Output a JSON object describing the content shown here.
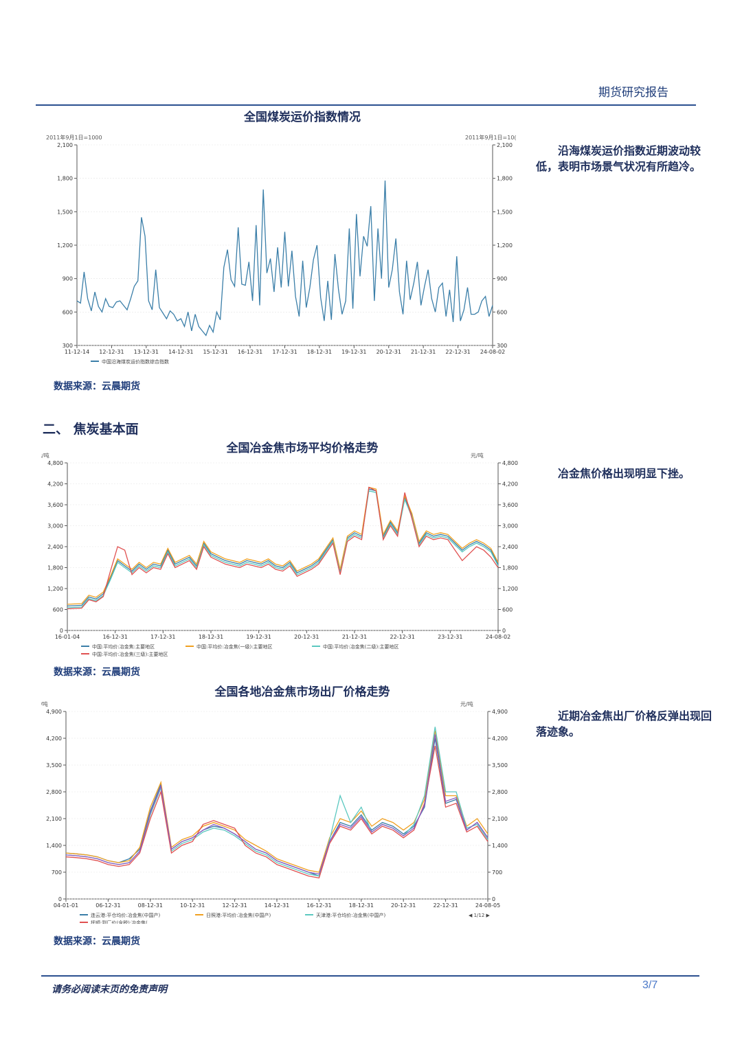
{
  "header": {
    "title": "期货研究报告"
  },
  "footer": {
    "disclaimer": "请务必阅读末页的免责声明",
    "page": "3/7"
  },
  "section2": {
    "title": "二、 焦炭基本面"
  },
  "sections": [
    {
      "title": "全国煤炭运价指数情况",
      "source": "数据来源：云晨期货",
      "note": "沿海煤炭运价指数近期波动较低，表明市场景气状况有所趋冷。"
    },
    {
      "title": "全国冶金焦市场平均价格走势",
      "source": "数据来源：云晨期货",
      "note": "冶金焦价格出现明显下挫。"
    },
    {
      "title": "全国各地冶金焦市场出厂价格走势",
      "source": "数据来源：云晨期货",
      "note": "近期冶金焦出厂价格反弹出现回落迹象。"
    }
  ],
  "chart_data": [
    {
      "type": "line",
      "unit_left": "2011年9月1日=1000",
      "unit_right": "2011年9月1日=10(",
      "ylim": [
        300,
        2100
      ],
      "yticks": [
        "300",
        "600",
        "900",
        "1,200",
        "1,500",
        "1,800",
        "2,100"
      ],
      "x_ticks": [
        "11-12-14",
        "12-12-31",
        "13-12-31",
        "14-12-31",
        "15-12-31",
        "16-12-31",
        "17-12-31",
        "18-12-31",
        "19-12-31",
        "20-12-31",
        "21-12-31",
        "22-12-31",
        "24-08-02"
      ],
      "legend_position": "bottom",
      "series": [
        {
          "name": "中国沿海煤炭运价指数综合指数",
          "color": "#3a7ea8",
          "values": [
            700,
            680,
            960,
            720,
            610,
            780,
            650,
            600,
            720,
            650,
            640,
            690,
            700,
            660,
            620,
            720,
            830,
            880,
            1450,
            1280,
            700,
            620,
            980,
            640,
            590,
            540,
            610,
            580,
            520,
            540,
            470,
            600,
            430,
            580,
            470,
            430,
            390,
            480,
            420,
            600,
            530,
            1000,
            1160,
            890,
            830,
            1360,
            850,
            840,
            1050,
            700,
            1380,
            660,
            1700,
            950,
            1080,
            780,
            1180,
            820,
            1320,
            830,
            1150,
            740,
            560,
            1060,
            640,
            820,
            1070,
            1200,
            730,
            520,
            880,
            530,
            1120,
            800,
            580,
            700,
            1350,
            630,
            1480,
            920,
            1280,
            1190,
            1550,
            700,
            1350,
            900,
            1780,
            820,
            980,
            1260,
            780,
            580,
            1060,
            710,
            860,
            1050,
            660,
            830,
            980,
            720,
            600,
            820,
            860,
            560,
            800,
            510,
            1100,
            520,
            620,
            820,
            580,
            580,
            600,
            700,
            740,
            560,
            660
          ]
        }
      ]
    },
    {
      "type": "line",
      "unit_left": "元/吨",
      "unit_right": "元/吨",
      "ylim": [
        0,
        4800
      ],
      "yticks": [
        "0",
        "600",
        "1,200",
        "1,800",
        "2,400",
        "3,000",
        "3,600",
        "4,200",
        "4,800"
      ],
      "x_ticks": [
        "16-01-04",
        "16-12-31",
        "17-12-31",
        "18-12-31",
        "19-12-31",
        "20-12-31",
        "21-12-31",
        "22-12-31",
        "23-12-31",
        "24-08-02"
      ],
      "legend_position": "bottom",
      "series": [
        {
          "name": "中国:平均价:冶金焦:主要地区",
          "color": "#3a7ea8",
          "values": [
            700,
            710,
            720,
            960,
            900,
            1050,
            1500,
            2000,
            1850,
            1700,
            1900,
            1750,
            1900,
            1850,
            2300,
            1900,
            2000,
            2100,
            1850,
            2500,
            2200,
            2100,
            2000,
            1950,
            1900,
            2000,
            1950,
            1900,
            2000,
            1850,
            1800,
            1950,
            1650,
            1750,
            1850,
            2000,
            2300,
            2600,
            1700,
            2650,
            2800,
            2700,
            4050,
            4000,
            2700,
            3100,
            2800,
            3800,
            3300,
            2500,
            2800,
            2700,
            2750,
            2700,
            2500,
            2300,
            2450,
            2550,
            2450,
            2300,
            1900
          ]
        },
        {
          "name": "中国:平均价:冶金焦(一级):主要地区",
          "color": "#f0a020",
          "values": [
            750,
            760,
            770,
            1010,
            950,
            1100,
            1550,
            2050,
            1900,
            1750,
            1950,
            1800,
            1950,
            1900,
            2350,
            1950,
            2050,
            2150,
            1900,
            2550,
            2250,
            2150,
            2050,
            2000,
            1950,
            2050,
            2000,
            1950,
            2050,
            1900,
            1850,
            2000,
            1700,
            1800,
            1900,
            2050,
            2350,
            2650,
            1750,
            2700,
            2850,
            2750,
            4100,
            4050,
            2750,
            3150,
            2850,
            3850,
            3350,
            2550,
            2850,
            2750,
            2800,
            2750,
            2550,
            2350,
            2500,
            2600,
            2500,
            2350,
            1950
          ]
        },
        {
          "name": "中国:平均价:冶金焦(二级):主要地区",
          "color": "#5bc8c0",
          "values": [
            650,
            660,
            670,
            910,
            850,
            1000,
            1450,
            1950,
            1800,
            1650,
            1850,
            1700,
            1850,
            1800,
            2250,
            1850,
            1950,
            2050,
            1800,
            2450,
            2150,
            2050,
            1950,
            1900,
            1850,
            1950,
            1900,
            1850,
            1950,
            1800,
            1750,
            1900,
            1600,
            1700,
            1800,
            1950,
            2250,
            2550,
            1650,
            2600,
            2750,
            2650,
            4000,
            3950,
            2650,
            3050,
            2750,
            3750,
            3250,
            2450,
            2750,
            2650,
            2700,
            2650,
            2450,
            2250,
            2400,
            2500,
            2400,
            2250,
            1850
          ]
        },
        {
          "name": "中国:平均价:冶金焦(三级):主要地区",
          "color": "#e05050",
          "values": [
            620,
            630,
            640,
            880,
            820,
            970,
            1700,
            2400,
            2300,
            1600,
            1800,
            1650,
            1800,
            1750,
            2200,
            1800,
            1900,
            2000,
            1750,
            2400,
            2100,
            2000,
            1900,
            1850,
            1800,
            1900,
            1850,
            1800,
            1900,
            1750,
            1700,
            1850,
            1550,
            1650,
            1750,
            1900,
            2200,
            2500,
            1600,
            2550,
            2700,
            2600,
            4100,
            4000,
            2600,
            3000,
            2700,
            3950,
            3200,
            2400,
            2700,
            2600,
            2650,
            2600,
            2300,
            2000,
            2200,
            2400,
            2300,
            2100,
            1800
          ]
        }
      ]
    },
    {
      "type": "line",
      "unit_left": "元/吨",
      "unit_right": "元/吨",
      "ylim": [
        0,
        4900
      ],
      "yticks": [
        "0",
        "700",
        "1,400",
        "2,100",
        "2,800",
        "3,500",
        "4,200",
        "4,900"
      ],
      "x_ticks": [
        "04-01-01",
        "06-12-31",
        "08-12-31",
        "10-12-31",
        "12-12-31",
        "14-12-31",
        "16-12-31",
        "18-12-31",
        "20-12-31",
        "22-12-31",
        "24-08-05"
      ],
      "legend_position": "bottom",
      "legend_page": "1/12",
      "series": [
        {
          "name": "连云港:平仓均价:冶金焦(中国产)",
          "color": "#3a7ea8",
          "values": [
            1200,
            1180,
            1150,
            1100,
            1000,
            950,
            1050,
            1300,
            2300,
            3000,
            1300,
            1500,
            1600,
            1800,
            1900,
            1850,
            1700,
            1500,
            1300,
            1200,
            1000,
            900,
            800,
            700,
            600,
            1500,
            2000,
            1900,
            2200,
            1800,
            2000,
            1900,
            1700,
            1900,
            2400,
            4200,
            2500,
            2600,
            1800,
            2000,
            1600
          ]
        },
        {
          "name": "日照港:平均价:冶金焦(中国产)",
          "color": "#f0a020",
          "values": [
            1200,
            1180,
            1150,
            1100,
            1000,
            950,
            1000,
            1350,
            2400,
            3050,
            1350,
            1550,
            1650,
            1900,
            2000,
            1900,
            1800,
            1550,
            1400,
            1250,
            1050,
            950,
            850,
            750,
            700,
            1600,
            2100,
            2000,
            2300,
            1900,
            2100,
            2000,
            1800,
            2000,
            2600,
            4400,
            2700,
            2700,
            1900,
            2100,
            1700
          ]
        },
        {
          "name": "天津港:平仓均价:冶金焦(中国产)",
          "color": "#5bc8c0",
          "values": [
            1150,
            1130,
            1100,
            1050,
            950,
            900,
            950,
            1250,
            2200,
            2900,
            1250,
            1450,
            1550,
            1750,
            1850,
            1800,
            1650,
            1450,
            1250,
            1150,
            950,
            850,
            750,
            650,
            600,
            1550,
            2700,
            2000,
            2400,
            1750,
            1950,
            1850,
            1650,
            1950,
            2700,
            4500,
            2800,
            2800,
            1850,
            1950,
            1550
          ]
        },
        {
          "name": "抚顺:到厂价(含税):冶金焦(",
          "color": "#e05050",
          "values": [
            1100,
            1080,
            1050,
            1000,
            900,
            850,
            900,
            1200,
            2100,
            2800,
            1200,
            1400,
            1500,
            1950,
            2050,
            1950,
            1850,
            1400,
            1200,
            1100,
            900,
            800,
            700,
            600,
            550,
            1450,
            1900,
            1800,
            2100,
            1700,
            1900,
            1800,
            1600,
            1800,
            2500,
            4000,
            2400,
            2500,
            1750,
            1900,
            1500
          ]
        },
        {
          "name": "",
          "color": "#8a5cc0",
          "values": [
            1150,
            1130,
            1100,
            1050,
            950,
            900,
            950,
            1250,
            2250,
            2950,
            1300,
            1500,
            1600,
            1800,
            1950,
            1850,
            1700,
            1500,
            1300,
            1200,
            1000,
            900,
            800,
            700,
            650,
            1500,
            1950,
            1850,
            2150,
            1750,
            1950,
            1850,
            1650,
            1850,
            2450,
            4300,
            2550,
            2650,
            1800,
            2000,
            1600
          ]
        }
      ]
    }
  ]
}
